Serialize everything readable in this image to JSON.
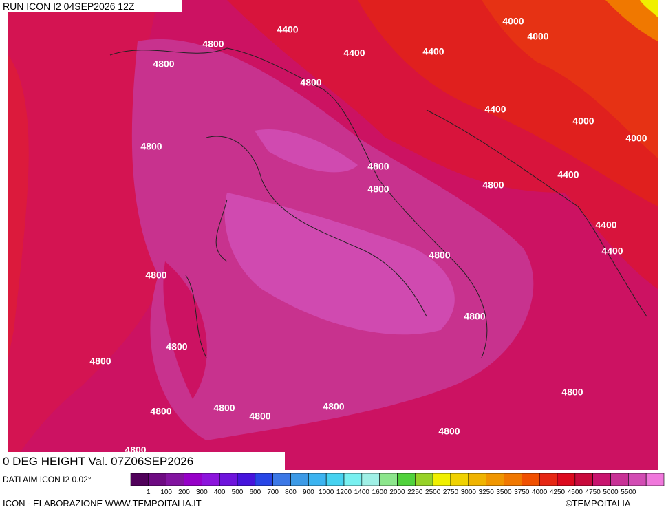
{
  "header": {
    "run": "RUN ICON I2 04SEP2026 12Z",
    "title": "0 DEG HEIGHT Val. 07Z06SEP2026",
    "source": "DATI AIM ICON I2 0.02°"
  },
  "contour_labels": [
    "4400",
    "4000",
    "4800",
    "4000",
    "4400",
    "4400",
    "4800",
    "4800",
    "4400",
    "4000",
    "4800",
    "4000",
    "4800",
    "4800",
    "4800",
    "4400",
    "4400",
    "4400",
    "4800",
    "4800",
    "4800",
    "4800",
    "4800",
    "4800",
    "4800",
    "4800",
    "4800",
    "4800",
    "4800",
    "4800"
  ],
  "legend": {
    "colors": [
      "#50005a",
      "#6e0a82",
      "#8214a0",
      "#9600c8",
      "#8c14dc",
      "#6e14dc",
      "#4614dc",
      "#2846e6",
      "#3c78e6",
      "#3c9ae6",
      "#3cb4f0",
      "#46d2f0",
      "#78f0f0",
      "#a0f0e6",
      "#8ce68c",
      "#50d23c",
      "#96d228",
      "#f0f000",
      "#f0d200",
      "#f0b400",
      "#f09600",
      "#f07800",
      "#f05000",
      "#e62814",
      "#dc0a1e",
      "#c80a3c",
      "#c8146e",
      "#c83296",
      "#d24cb4",
      "#f078dc"
    ],
    "labels": [
      "1",
      "100",
      "200",
      "300",
      "400",
      "500",
      "600",
      "700",
      "800",
      "900",
      "1000",
      "1200",
      "1400",
      "1600",
      "2000",
      "2250",
      "2500",
      "2750",
      "3000",
      "3250",
      "3500",
      "3750",
      "4000",
      "4250",
      "4500",
      "4750",
      "5000",
      "5500"
    ]
  },
  "footer": {
    "credit": "ICON - ELABORAZIONE WWW.TEMPOITALIA.IT",
    "brand": "©TEMPOITALIA"
  }
}
